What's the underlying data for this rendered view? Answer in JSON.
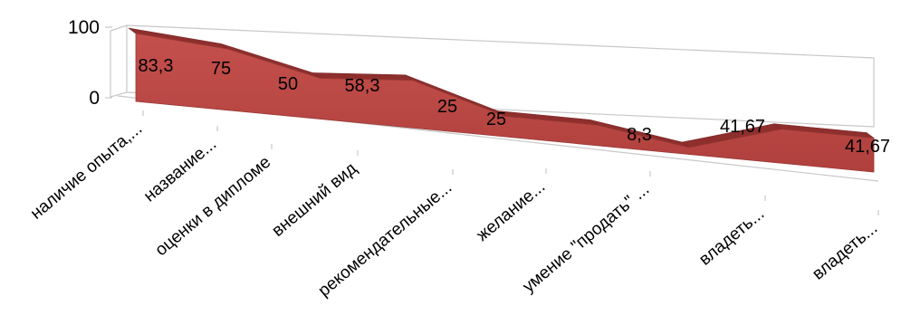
{
  "chart_data": {
    "type": "area",
    "three_d": true,
    "title": "",
    "xlabel": "",
    "ylabel": "",
    "ylim": [
      0,
      100
    ],
    "yticks": [
      "0",
      "100"
    ],
    "grid": false,
    "legend": "none",
    "categories": [
      "наличие опыта,...",
      "название...",
      "оценки в дипломе",
      "внешний вид",
      "рекомендательные...",
      "желание...",
      "умение \"продать\" ...",
      "владеть...",
      "владеть..."
    ],
    "series": [
      {
        "values": [
          83.3,
          75,
          50,
          58.3,
          25,
          25,
          8.3,
          41.67,
          41.67
        ],
        "labels": [
          "83,3",
          "75",
          "50",
          "58,3",
          "25",
          "25",
          "8,3",
          "41,67",
          "41,67"
        ],
        "color": "#c0504d"
      }
    ]
  }
}
